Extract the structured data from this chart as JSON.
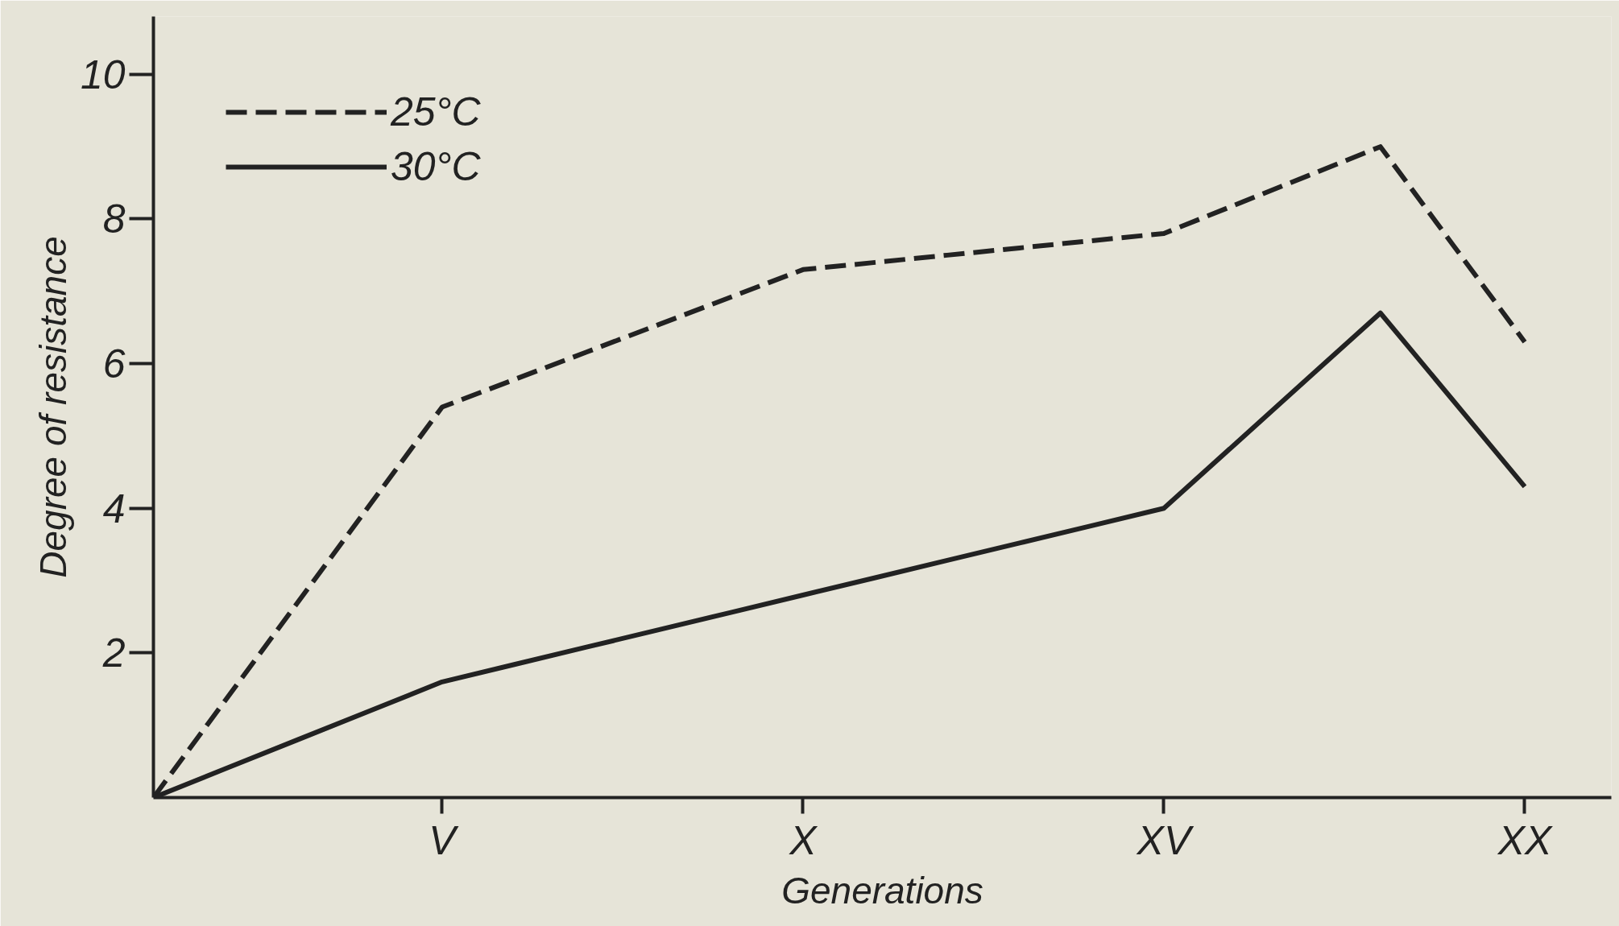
{
  "chart_data": {
    "type": "line",
    "xlabel": "Generations",
    "ylabel": "Degree of resistance",
    "categories": [
      null,
      null,
      null,
      null,
      "V",
      null,
      null,
      null,
      null,
      "X",
      null,
      null,
      null,
      null,
      "XV",
      null,
      null,
      null,
      null,
      "XX"
    ],
    "ylim": [
      0,
      10.8
    ],
    "yticks": [
      2,
      4,
      6,
      8,
      10
    ],
    "grid": false,
    "legend": "top left",
    "marker": "none",
    "series": [
      {
        "name": "25°C",
        "color": "#222222",
        "line_style": "dashed",
        "values": [
          0,
          1.35,
          2.7,
          4.05,
          5.4,
          5.78,
          6.16,
          6.54,
          6.92,
          7.3,
          7.4,
          7.5,
          7.6,
          7.7,
          7.8,
          8.2,
          8.6,
          9.0,
          7.65,
          6.3
        ]
      },
      {
        "name": "30°C",
        "color": "#222222",
        "line_style": "solid",
        "values": [
          0,
          0.4,
          0.8,
          1.2,
          1.6,
          1.84,
          2.08,
          2.32,
          2.56,
          2.8,
          3.04,
          3.28,
          3.52,
          3.76,
          4.0,
          4.9,
          5.8,
          6.7,
          5.5,
          4.3
        ]
      }
    ]
  }
}
